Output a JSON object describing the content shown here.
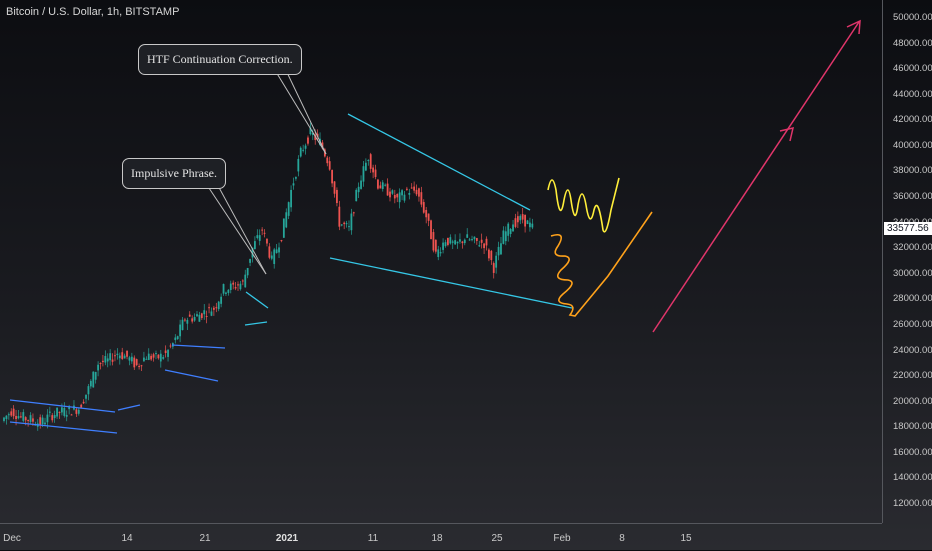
{
  "header": {
    "title": "Bitcoin / U.S. Dollar, 1h, BITSTAMP"
  },
  "callouts": {
    "htf": "HTF Continuation Correction.",
    "impulsive": "Impulsive Phrase."
  },
  "price_axis": {
    "ticks": [
      "50000.00",
      "48000.00",
      "46000.00",
      "44000.00",
      "42000.00",
      "40000.00",
      "38000.00",
      "36000.00",
      "34000.00",
      "32000.00",
      "30000.00",
      "28000.00",
      "26000.00",
      "24000.00",
      "22000.00",
      "20000.00",
      "18000.00",
      "16000.00",
      "14000.00",
      "12000.00"
    ],
    "last_price": "33577.56"
  },
  "time_axis": {
    "ticks": [
      {
        "label": "Dec",
        "major": false
      },
      {
        "label": "14",
        "major": false
      },
      {
        "label": "21",
        "major": false
      },
      {
        "label": "2021",
        "major": true
      },
      {
        "label": "11",
        "major": false
      },
      {
        "label": "18",
        "major": false
      },
      {
        "label": "25",
        "major": false
      },
      {
        "label": "Feb",
        "major": false
      },
      {
        "label": "8",
        "major": false
      },
      {
        "label": "15",
        "major": false
      }
    ]
  },
  "chart_data": {
    "type": "candlestick",
    "symbol": "Bitcoin / U.S. Dollar",
    "interval": "1h",
    "exchange": "BITSTAMP",
    "ylim": [
      10000,
      51500
    ],
    "last_price": 33577.56,
    "price_path": [
      [
        "Dec 7",
        18500
      ],
      [
        "Dec 8",
        19300
      ],
      [
        "Dec 9",
        18800
      ],
      [
        "Dec 10",
        18600
      ],
      [
        "Dec 11",
        18300
      ],
      [
        "Dec 12",
        18900
      ],
      [
        "Dec 13",
        19200
      ],
      [
        "Dec 14",
        19300
      ],
      [
        "Dec 15",
        19500
      ],
      [
        "Dec 16",
        21000
      ],
      [
        "Dec 17",
        23000
      ],
      [
        "Dec 18",
        23200
      ],
      [
        "Dec 19",
        23800
      ],
      [
        "Dec 20",
        23500
      ],
      [
        "Dec 21",
        22800
      ],
      [
        "Dec 22",
        23600
      ],
      [
        "Dec 23",
        23400
      ],
      [
        "Dec 24",
        23700
      ],
      [
        "Dec 25",
        24800
      ],
      [
        "Dec 26",
        26500
      ],
      [
        "Dec 27",
        26600
      ],
      [
        "Dec 28",
        27000
      ],
      [
        "Dec 29",
        27300
      ],
      [
        "Dec 30",
        28800
      ],
      [
        "Dec 31",
        29000
      ],
      [
        "Jan 1",
        29300
      ],
      [
        "Jan 2",
        32000
      ],
      [
        "Jan 3",
        33500
      ],
      [
        "Jan 4",
        31000
      ],
      [
        "Jan 5",
        33000
      ],
      [
        "Jan 6",
        36500
      ],
      [
        "Jan 7",
        39500
      ],
      [
        "Jan 8",
        41000
      ],
      [
        "Jan 9",
        40300
      ],
      [
        "Jan 10",
        38500
      ],
      [
        "Jan 11",
        34000
      ],
      [
        "Jan 12",
        33500
      ],
      [
        "Jan 13",
        37000
      ],
      [
        "Jan 14",
        39200
      ],
      [
        "Jan 15",
        37000
      ],
      [
        "Jan 16",
        36500
      ],
      [
        "Jan 17",
        35800
      ],
      [
        "Jan 18",
        36500
      ],
      [
        "Jan 19",
        36500
      ],
      [
        "Jan 20",
        34500
      ],
      [
        "Jan 21",
        31500
      ],
      [
        "Jan 22",
        32700
      ],
      [
        "Jan 23",
        32200
      ],
      [
        "Jan 24",
        32800
      ],
      [
        "Jan 25",
        32500
      ],
      [
        "Jan 26",
        32400
      ],
      [
        "Jan 27",
        30500
      ],
      [
        "Jan 28",
        33000
      ],
      [
        "Jan 29",
        34000
      ],
      [
        "Jan 30",
        34300
      ],
      [
        "Jan 31",
        33577.56
      ]
    ],
    "drawings": [
      {
        "kind": "projection-yellow"
      },
      {
        "kind": "projection-orange"
      },
      {
        "kind": "arrow",
        "target_price": 50000
      }
    ]
  },
  "colors": {
    "background_top": "#0c0d11",
    "up_candle": "#26a69a",
    "down_candle": "#ef5350",
    "trendline_cyan": "#35c7e6",
    "trendline_blue": "#3f7fff",
    "projection_yellow": "#ffee3a",
    "projection_orange": "#ffa21b",
    "arrow_pink": "#e0356a"
  }
}
